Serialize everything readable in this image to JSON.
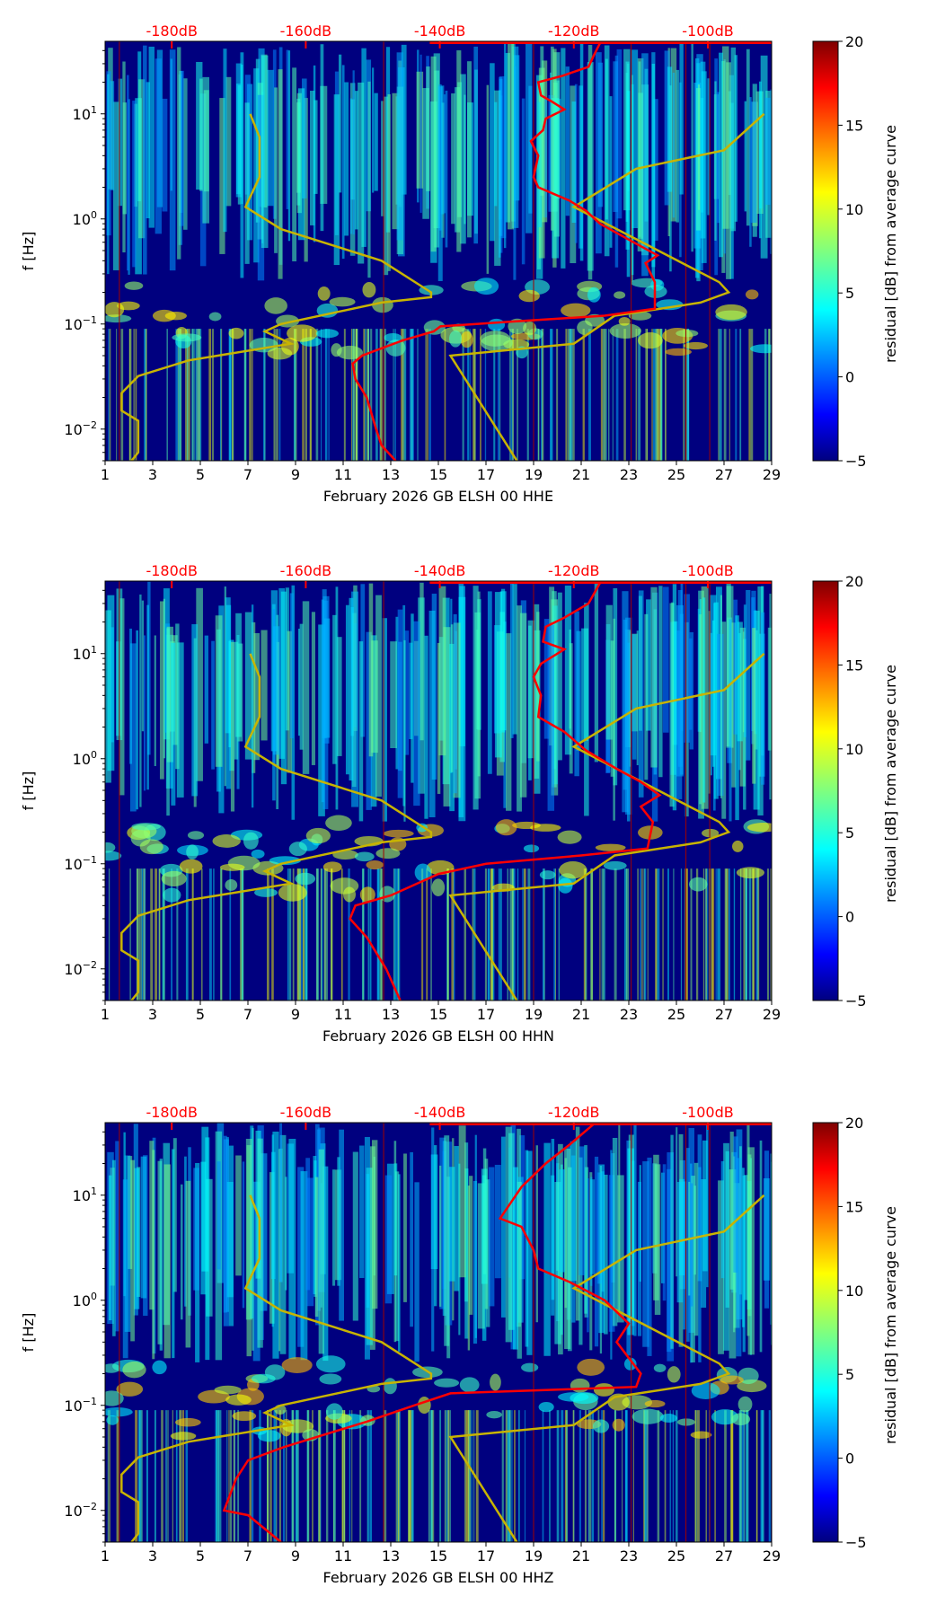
{
  "chart_data": [
    {
      "type": "heatmap",
      "xlabel": "February 2026 GB ELSH 00 HHE",
      "ylabel": "f [Hz]",
      "colorbar_label": "residual [dB] from average curve",
      "xticks": [
        "1",
        "3",
        "5",
        "7",
        "9",
        "11",
        "13",
        "15",
        "17",
        "19",
        "21",
        "23",
        "25",
        "27",
        "29"
      ],
      "xlim": [
        1,
        29
      ],
      "yticks_exp": [
        -2,
        -1,
        0,
        1
      ],
      "ylim": [
        0.005,
        49
      ],
      "top_ticks": [
        "-180dB",
        "-160dB",
        "-140dB",
        "-120dB",
        "-100dB"
      ],
      "top_tick_values": [
        -180,
        -160,
        -140,
        -120,
        -100
      ],
      "colorbar_ticks": [
        "20",
        "15",
        "10",
        "5",
        "0",
        "−5"
      ],
      "colorbar_range": [
        -5,
        20
      ],
      "psd_curve": {
        "color": "#ff0000",
        "points": [
          [
            -116.1,
            47
          ],
          [
            -117.1,
            35
          ],
          [
            -117.8,
            28
          ],
          [
            -121.7,
            23
          ],
          [
            -125.3,
            20
          ],
          [
            -124.9,
            15
          ],
          [
            -123.2,
            13
          ],
          [
            -121.4,
            11
          ],
          [
            -124.2,
            9
          ],
          [
            -124.6,
            7
          ],
          [
            -126.4,
            5.5
          ],
          [
            -125.3,
            4
          ],
          [
            -126,
            2.5
          ],
          [
            -125.3,
            2
          ],
          [
            -120.7,
            1.5
          ],
          [
            -118.2,
            1.2
          ],
          [
            -116.1,
            0.9
          ],
          [
            -111.1,
            0.6
          ],
          [
            -107.5,
            0.45
          ],
          [
            -109.3,
            0.38
          ],
          [
            -107.9,
            0.25
          ],
          [
            -107.9,
            0.14
          ],
          [
            -115.4,
            0.12
          ],
          [
            -129.6,
            0.105
          ],
          [
            -139.9,
            0.095
          ],
          [
            -140.9,
            0.085
          ],
          [
            -145.5,
            0.07
          ],
          [
            -151.6,
            0.05
          ],
          [
            -153,
            0.042
          ],
          [
            -152.6,
            0.03
          ],
          [
            -150.9,
            0.02
          ],
          [
            -149.5,
            0.01
          ],
          [
            -148.7,
            0.007
          ],
          [
            -146.6,
            0.005
          ]
        ]
      },
      "noise_models": {
        "color": "#c8b400",
        "nlnm": [
          [
            -168.3,
            10
          ],
          [
            -166.9,
            6
          ],
          [
            -166.9,
            2.5
          ],
          [
            -169,
            1.3
          ],
          [
            -163.7,
            0.8
          ],
          [
            -148.7,
            0.4
          ],
          [
            -141.3,
            0.2
          ],
          [
            -141.3,
            0.18
          ],
          [
            -148.7,
            0.16
          ],
          [
            -163.7,
            0.1
          ],
          [
            -166.1,
            0.085
          ],
          [
            -162.2,
            0.065
          ],
          [
            -177.5,
            0.045
          ],
          [
            -185,
            0.032
          ],
          [
            -187.5,
            0.022
          ],
          [
            -187.5,
            0.015
          ],
          [
            -185,
            0.012
          ],
          [
            -185,
            0.006
          ],
          [
            -186,
            0.005
          ]
        ],
        "nhnm": [
          [
            -128.5,
            0.005
          ],
          [
            -138.4,
            0.05
          ],
          [
            -120,
            0.065
          ],
          [
            -113.9,
            0.12
          ],
          [
            -101.1,
            0.16
          ],
          [
            -96.9,
            0.2
          ],
          [
            -98.3,
            0.25
          ],
          [
            -120,
            1.3
          ],
          [
            -110.7,
            3
          ],
          [
            -97.6,
            4.5
          ],
          [
            -91.6,
            10
          ]
        ]
      }
    },
    {
      "type": "heatmap",
      "xlabel": "February 2026 GB ELSH 00 HHN",
      "ylabel": "f [Hz]",
      "colorbar_label": "residual [dB] from average curve",
      "xticks": [
        "1",
        "3",
        "5",
        "7",
        "9",
        "11",
        "13",
        "15",
        "17",
        "19",
        "21",
        "23",
        "25",
        "27",
        "29"
      ],
      "xlim": [
        1,
        29
      ],
      "yticks_exp": [
        -2,
        -1,
        0,
        1
      ],
      "ylim": [
        0.005,
        49
      ],
      "top_ticks": [
        "-180dB",
        "-160dB",
        "-140dB",
        "-120dB",
        "-100dB"
      ],
      "top_tick_values": [
        -180,
        -160,
        -140,
        -120,
        -100
      ],
      "colorbar_ticks": [
        "20",
        "15",
        "10",
        "5",
        "0",
        "−5"
      ],
      "colorbar_range": [
        -5,
        20
      ],
      "psd_curve": {
        "color": "#ff0000",
        "points": [
          [
            -116.1,
            47
          ],
          [
            -117.8,
            30
          ],
          [
            -121.4,
            22
          ],
          [
            -124.2,
            18
          ],
          [
            -124.6,
            13
          ],
          [
            -121.4,
            11
          ],
          [
            -124.9,
            8
          ],
          [
            -126,
            6
          ],
          [
            -124.9,
            4
          ],
          [
            -125.3,
            2.5
          ],
          [
            -121.4,
            1.8
          ],
          [
            -118.2,
            1.2
          ],
          [
            -113.6,
            0.8
          ],
          [
            -110,
            0.6
          ],
          [
            -107.2,
            0.45
          ],
          [
            -110,
            0.35
          ],
          [
            -108.2,
            0.25
          ],
          [
            -109,
            0.14
          ],
          [
            -118.9,
            0.12
          ],
          [
            -133.1,
            0.1
          ],
          [
            -140.2,
            0.08
          ],
          [
            -147.3,
            0.05
          ],
          [
            -152.6,
            0.04
          ],
          [
            -153.4,
            0.03
          ],
          [
            -150.9,
            0.02
          ],
          [
            -148,
            0.01
          ],
          [
            -145.9,
            0.005
          ]
        ]
      },
      "noise_models": {
        "color": "#c8b400",
        "nlnm": [
          [
            -168.3,
            10
          ],
          [
            -166.9,
            6
          ],
          [
            -166.9,
            2.5
          ],
          [
            -169,
            1.3
          ],
          [
            -163.7,
            0.8
          ],
          [
            -148.7,
            0.4
          ],
          [
            -141.3,
            0.2
          ],
          [
            -141.3,
            0.18
          ],
          [
            -148.7,
            0.16
          ],
          [
            -163.7,
            0.1
          ],
          [
            -166.1,
            0.085
          ],
          [
            -162.2,
            0.065
          ],
          [
            -177.5,
            0.045
          ],
          [
            -185,
            0.032
          ],
          [
            -187.5,
            0.022
          ],
          [
            -187.5,
            0.015
          ],
          [
            -185,
            0.012
          ],
          [
            -185,
            0.006
          ],
          [
            -186,
            0.005
          ]
        ],
        "nhnm": [
          [
            -128.5,
            0.005
          ],
          [
            -138.4,
            0.05
          ],
          [
            -120,
            0.065
          ],
          [
            -113.9,
            0.12
          ],
          [
            -101.1,
            0.16
          ],
          [
            -96.9,
            0.2
          ],
          [
            -98.3,
            0.25
          ],
          [
            -120,
            1.3
          ],
          [
            -110.7,
            3
          ],
          [
            -97.6,
            4.5
          ],
          [
            -91.6,
            10
          ]
        ]
      }
    },
    {
      "type": "heatmap",
      "xlabel": "February 2026 GB ELSH 00 HHZ",
      "ylabel": "f [Hz]",
      "colorbar_label": "residual [dB] from average curve",
      "xticks": [
        "1",
        "3",
        "5",
        "7",
        "9",
        "11",
        "13",
        "15",
        "17",
        "19",
        "21",
        "23",
        "25",
        "27",
        "29"
      ],
      "xlim": [
        1,
        29
      ],
      "yticks_exp": [
        -2,
        -1,
        0,
        1
      ],
      "ylim": [
        0.005,
        49
      ],
      "top_ticks": [
        "-180dB",
        "-160dB",
        "-140dB",
        "-120dB",
        "-100dB"
      ],
      "top_tick_values": [
        -180,
        -160,
        -140,
        -120,
        -100
      ],
      "colorbar_ticks": [
        "20",
        "15",
        "10",
        "5",
        "0",
        "−5"
      ],
      "colorbar_range": [
        -5,
        20
      ],
      "psd_curve": {
        "color": "#ff0000",
        "points": [
          [
            -117.1,
            47
          ],
          [
            -120.7,
            30
          ],
          [
            -124.2,
            20
          ],
          [
            -127.8,
            12
          ],
          [
            -131,
            6
          ],
          [
            -127.8,
            5
          ],
          [
            -126,
            3
          ],
          [
            -125.3,
            2
          ],
          [
            -120.7,
            1.5
          ],
          [
            -115.4,
            1
          ],
          [
            -111.8,
            0.6
          ],
          [
            -113.6,
            0.4
          ],
          [
            -110,
            0.2
          ],
          [
            -110.7,
            0.15
          ],
          [
            -138.4,
            0.13
          ],
          [
            -143.8,
            0.1
          ],
          [
            -150.9,
            0.07
          ],
          [
            -163.3,
            0.04
          ],
          [
            -168.6,
            0.03
          ],
          [
            -170.4,
            0.02
          ],
          [
            -172.2,
            0.01
          ],
          [
            -168.6,
            0.009
          ],
          [
            -163.7,
            0.005
          ]
        ]
      },
      "noise_models": {
        "color": "#c8b400",
        "nlnm": [
          [
            -168.3,
            10
          ],
          [
            -166.9,
            6
          ],
          [
            -166.9,
            2.5
          ],
          [
            -169,
            1.3
          ],
          [
            -163.7,
            0.8
          ],
          [
            -148.7,
            0.4
          ],
          [
            -141.3,
            0.2
          ],
          [
            -141.3,
            0.18
          ],
          [
            -148.7,
            0.16
          ],
          [
            -163.7,
            0.1
          ],
          [
            -166.1,
            0.085
          ],
          [
            -162.2,
            0.065
          ],
          [
            -177.5,
            0.045
          ],
          [
            -185,
            0.032
          ],
          [
            -187.5,
            0.022
          ],
          [
            -187.5,
            0.015
          ],
          [
            -185,
            0.012
          ],
          [
            -185,
            0.006
          ],
          [
            -186,
            0.005
          ]
        ],
        "nhnm": [
          [
            -128.5,
            0.005
          ],
          [
            -138.4,
            0.05
          ],
          [
            -120,
            0.065
          ],
          [
            -113.9,
            0.12
          ],
          [
            -101.1,
            0.16
          ],
          [
            -96.9,
            0.2
          ],
          [
            -98.3,
            0.25
          ],
          [
            -120,
            1.3
          ],
          [
            -110.7,
            3
          ],
          [
            -97.6,
            4.5
          ],
          [
            -91.6,
            10
          ]
        ]
      }
    }
  ]
}
